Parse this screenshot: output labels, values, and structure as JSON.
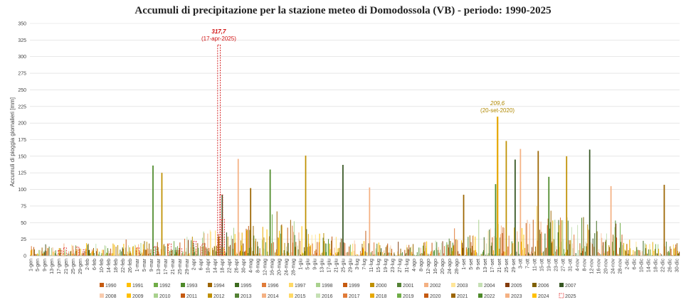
{
  "chart_data": {
    "type": "bar",
    "title": "Accumuli di precipitazione per la stazione meteo di Domodossola (VB) - periodo: 1990-2025",
    "xlabel": "",
    "ylabel": "Accumuli di pioggia giornalieri [mm]",
    "ylim": [
      0,
      350
    ],
    "yticks": [
      0,
      25,
      50,
      75,
      100,
      125,
      150,
      175,
      200,
      225,
      250,
      275,
      300,
      325,
      350
    ],
    "grid": true,
    "legend_position": "bottom",
    "x_ticks": [
      "1-gen",
      "5-gen",
      "9-gen",
      "13-gen",
      "17-gen",
      "21-gen",
      "25-gen",
      "29-gen",
      "2-feb",
      "6-feb",
      "10-feb",
      "14-feb",
      "18-feb",
      "22-feb",
      "26-feb",
      "1-mar",
      "5-mar",
      "9-mar",
      "13-mar",
      "17-mar",
      "21-mar",
      "25-mar",
      "29-mar",
      "2-apr",
      "6-apr",
      "10-apr",
      "14-apr",
      "18-apr",
      "22-apr",
      "26-apr",
      "30-apr",
      "4-mag",
      "8-mag",
      "12-mag",
      "16-mag",
      "20-mag",
      "24-mag",
      "28-mag",
      "1-giu",
      "5-giu",
      "9-giu",
      "13-giu",
      "17-giu",
      "21-giu",
      "25-giu",
      "29-giu",
      "3-lug",
      "7-lug",
      "11-lug",
      "15-lug",
      "19-lug",
      "23-lug",
      "27-lug",
      "31-lug",
      "4-ago",
      "8-ago",
      "12-ago",
      "16-ago",
      "20-ago",
      "24-ago",
      "28-ago",
      "1-set",
      "5-set",
      "9-set",
      "13-set",
      "17-set",
      "21-set",
      "25-set",
      "29-set",
      "3-ott",
      "7-ott",
      "11-ott",
      "15-ott",
      "19-ott",
      "23-ott",
      "27-ott",
      "31-ott",
      "4-nov",
      "8-nov",
      "12-nov",
      "16-nov",
      "20-nov",
      "24-nov",
      "28-nov",
      "2-dic",
      "6-dic",
      "10-dic",
      "14-dic",
      "18-dic",
      "22-dic",
      "26-dic",
      "30-dic"
    ],
    "day_count": 366,
    "series": [
      {
        "name": "1990",
        "color": "#c55a11"
      },
      {
        "name": "1991",
        "color": "#ffc000"
      },
      {
        "name": "1992",
        "color": "#70ad47"
      },
      {
        "name": "1993",
        "color": "#4e8a2a"
      },
      {
        "name": "1994",
        "color": "#9c6500"
      },
      {
        "name": "1995",
        "color": "#3d6b1f"
      },
      {
        "name": "1996",
        "color": "#e07b39"
      },
      {
        "name": "1997",
        "color": "#ffd966"
      },
      {
        "name": "1998",
        "color": "#a9d18e"
      },
      {
        "name": "1999",
        "color": "#c55a11"
      },
      {
        "name": "2000",
        "color": "#bf9000"
      },
      {
        "name": "2001",
        "color": "#548235"
      },
      {
        "name": "2002",
        "color": "#f4b183"
      },
      {
        "name": "2003",
        "color": "#ffe699"
      },
      {
        "name": "2004",
        "color": "#c5e0b4"
      },
      {
        "name": "2005",
        "color": "#843c0c"
      },
      {
        "name": "2006",
        "color": "#7f6000"
      },
      {
        "name": "2007",
        "color": "#375623"
      },
      {
        "name": "2008",
        "color": "#f8cbad"
      },
      {
        "name": "2009",
        "color": "#ffc000"
      },
      {
        "name": "2010",
        "color": "#a9d18e"
      },
      {
        "name": "2011",
        "color": "#c55a11"
      },
      {
        "name": "2012",
        "color": "#bf9000"
      },
      {
        "name": "2013",
        "color": "#548235"
      },
      {
        "name": "2014",
        "color": "#f4b183"
      },
      {
        "name": "2015",
        "color": "#ffd966"
      },
      {
        "name": "2016",
        "color": "#c5e0b4"
      },
      {
        "name": "2017",
        "color": "#e07b39"
      },
      {
        "name": "2018",
        "color": "#e6a800"
      },
      {
        "name": "2019",
        "color": "#70ad47"
      },
      {
        "name": "2020",
        "color": "#c55a11"
      },
      {
        "name": "2021",
        "color": "#9c6500"
      },
      {
        "name": "2022",
        "color": "#4e8a2a"
      },
      {
        "name": "2023",
        "color": "#f4b183"
      },
      {
        "name": "2024",
        "color": "#ffc000"
      },
      {
        "name": "2025",
        "color": "#e02020",
        "style": "dashed"
      }
    ],
    "highlights": [
      {
        "series": "2025",
        "date": "17-apr-2025",
        "day_index": 106,
        "value": 317.7,
        "label": "317,7",
        "sublabel": "(17-apr-2025)",
        "color": "#d01010"
      },
      {
        "series": "2020",
        "date": "20-set-2020",
        "day_index": 263,
        "value": 209.6,
        "label": "209,6",
        "sublabel": "(20-set-2020)",
        "color": "#b08800"
      }
    ],
    "notable_peaks": [
      {
        "day_index": 69,
        "value": 136
      },
      {
        "day_index": 74,
        "value": 125
      },
      {
        "day_index": 108,
        "value": 92
      },
      {
        "day_index": 117,
        "value": 146
      },
      {
        "day_index": 124,
        "value": 102
      },
      {
        "day_index": 135,
        "value": 130
      },
      {
        "day_index": 155,
        "value": 151
      },
      {
        "day_index": 176,
        "value": 137
      },
      {
        "day_index": 191,
        "value": 103
      },
      {
        "day_index": 244,
        "value": 92
      },
      {
        "day_index": 262,
        "value": 108
      },
      {
        "day_index": 268,
        "value": 173
      },
      {
        "day_index": 273,
        "value": 145
      },
      {
        "day_index": 276,
        "value": 161
      },
      {
        "day_index": 286,
        "value": 158
      },
      {
        "day_index": 292,
        "value": 119
      },
      {
        "day_index": 302,
        "value": 150
      },
      {
        "day_index": 315,
        "value": 160
      },
      {
        "day_index": 327,
        "value": 105
      },
      {
        "day_index": 357,
        "value": 107
      }
    ]
  }
}
